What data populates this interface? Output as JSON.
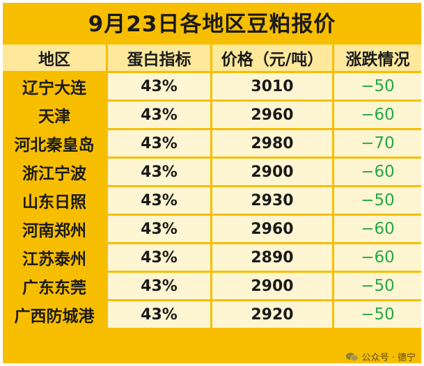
{
  "title": "9月23日各地区豆粕报价",
  "headers": [
    "地区",
    "蛋白指标",
    "价格（元/吨）",
    "涨跌情况"
  ],
  "rows": [
    {
      "region": "辽宁大连",
      "protein": "43%",
      "price": "3010",
      "change": "−50"
    },
    {
      "region": "天津",
      "protein": "43%",
      "price": "2960",
      "change": "−60"
    },
    {
      "region": "河北秦皇岛",
      "protein": "43%",
      "price": "2980",
      "change": "−70"
    },
    {
      "region": "浙江宁波",
      "protein": "43%",
      "price": "2900",
      "change": "−60"
    },
    {
      "region": "山东日照",
      "protein": "43%",
      "price": "2930",
      "change": "−50"
    },
    {
      "region": "河南郑州",
      "protein": "43%",
      "price": "2960",
      "change": "−60"
    },
    {
      "region": "江苏泰州",
      "protein": "43%",
      "price": "2890",
      "change": "−60"
    },
    {
      "region": "广东东莞",
      "protein": "43%",
      "price": "2900",
      "change": "−50"
    },
    {
      "region": "广西防城港",
      "protein": "43%",
      "price": "2920",
      "change": "−50"
    }
  ],
  "watermark": {
    "icon": "wechat-icon",
    "text": "公众号 · 德宁"
  },
  "colors": {
    "frame": "#f7be00",
    "header": "#fde89c",
    "cell": "#fef5d2",
    "down": "#25a845"
  }
}
